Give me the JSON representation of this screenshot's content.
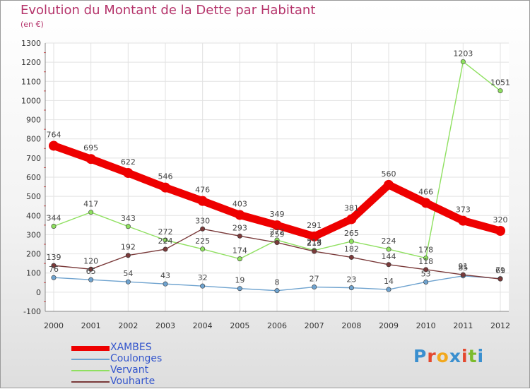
{
  "header": {
    "title": "Evolution du Montant de la Dette par Habitant",
    "subtitle": "(en €)"
  },
  "logo": {
    "text": "Proxiti",
    "letter_colors": [
      "#3a8fcf",
      "#e4482e",
      "#f2a81d",
      "#3a8fcf",
      "#e4482e",
      "#7cbb2c",
      "#3a8fcf"
    ]
  },
  "chart_data": {
    "type": "line",
    "title": "Evolution du Montant de la Dette par Habitant",
    "subtitle": "(en €)",
    "xlabel": "",
    "ylabel": "",
    "x": [
      "2000",
      "2001",
      "2002",
      "2003",
      "2004",
      "2005",
      "2006",
      "2007",
      "2008",
      "2009",
      "2010",
      "2011",
      "2012"
    ],
    "ylim": [
      -100,
      1300
    ],
    "yticks": [
      -100,
      0,
      100,
      200,
      300,
      400,
      500,
      600,
      700,
      800,
      900,
      1000,
      1100,
      1200,
      1300
    ],
    "grid": true,
    "legend_position": "bottom-left",
    "series": [
      {
        "name": "XAMBES",
        "color": "#ee0000",
        "emphasis": true,
        "values": [
          764,
          695,
          622,
          546,
          476,
          403,
          349,
          291,
          381,
          560,
          466,
          373,
          320
        ]
      },
      {
        "name": "Coulonges",
        "color": "#6fa3cf",
        "values": [
          76,
          65,
          54,
          43,
          32,
          19,
          8,
          27,
          23,
          14,
          53,
          85,
          71
        ]
      },
      {
        "name": "Vervant",
        "color": "#8fe060",
        "values": [
          344,
          417,
          343,
          272,
          225,
          174,
          272,
          218,
          265,
          224,
          178,
          1203,
          1051
        ]
      },
      {
        "name": "Vouharte",
        "color": "#7a3a3a",
        "values": [
          139,
          120,
          192,
          224,
          330,
          293,
          259,
          213,
          182,
          144,
          118,
          91,
          69
        ]
      }
    ]
  }
}
